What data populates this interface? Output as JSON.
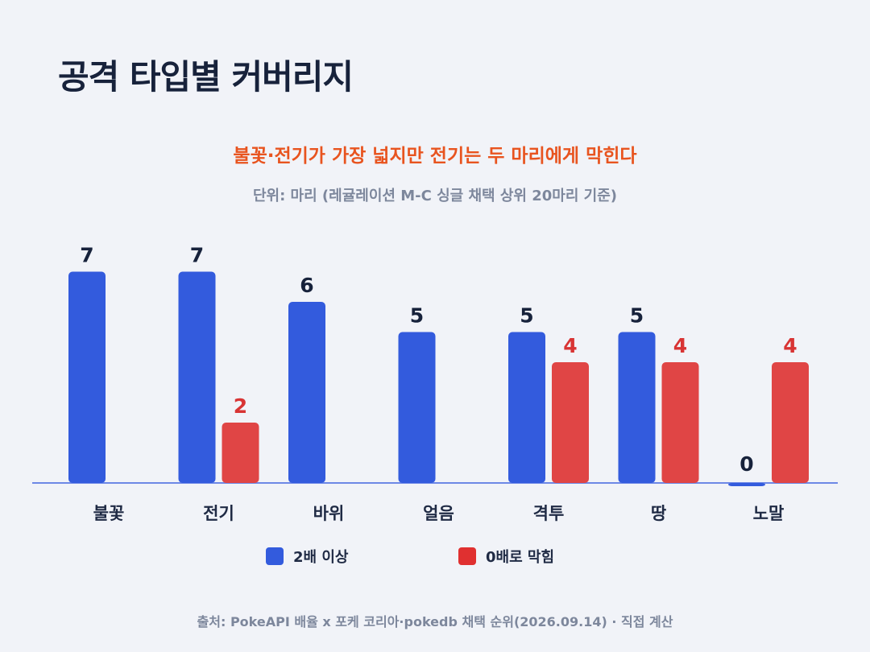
{
  "title": "공격 타입별 커버리지",
  "subtitle": "불꽃·전기가 가장 넓지만 전기는 두 마리에게 막힌다",
  "unit_note": "단위: 마리 (레귤레이션 M-C 싱글 채택 상위 20마리 기준)",
  "source": "출처: PokeAPI 배율 x 포케 코리아·pokedb 채택 순위(2026.09.14) · 직접 계산",
  "colors": {
    "blue": "#335bdd",
    "red": "#e04545",
    "red_label": "#d83434",
    "value_label": "#17223b",
    "baseline": "#6d88e6",
    "category": "#1f2a44"
  },
  "chart_data": {
    "type": "bar",
    "categories": [
      "불꽃",
      "전기",
      "바위",
      "얼음",
      "격투",
      "땅",
      "노말"
    ],
    "series": [
      {
        "name": "2배 이상",
        "values": [
          7,
          7,
          6,
          5,
          5,
          5,
          0
        ]
      },
      {
        "name": "0배로 막힘",
        "values": [
          null,
          2,
          null,
          null,
          4,
          4,
          4
        ]
      }
    ],
    "ylim": [
      0,
      7
    ],
    "grid": false,
    "legend_position": "bottom-center"
  }
}
